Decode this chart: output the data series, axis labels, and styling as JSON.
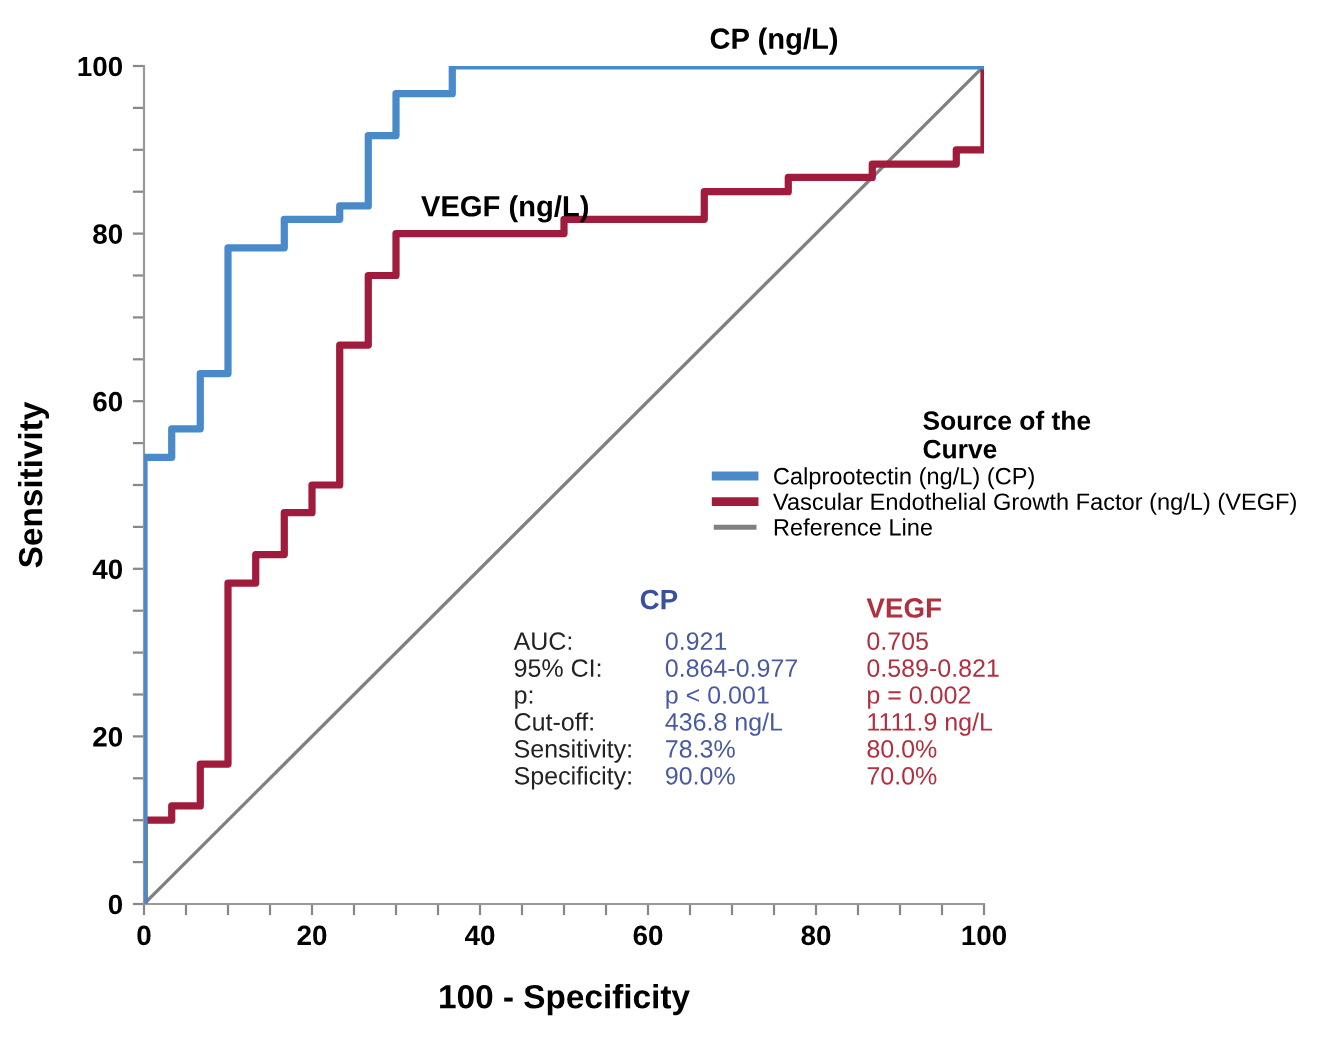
{
  "chart_data": {
    "type": "step",
    "xlabel": "100 - Specificity",
    "ylabel": "Sensitivity",
    "legend_title": "Source of the\nCurve",
    "legend": "right",
    "xlim": [
      0,
      100
    ],
    "ylim": [
      0,
      100
    ],
    "xticks": [
      0,
      {
        "value": 5,
        "label": null
      },
      {
        "value": 10,
        "label": null
      },
      {
        "value": 15,
        "label": null
      },
      20,
      {
        "value": 25,
        "label": null
      },
      {
        "value": 30,
        "label": null
      },
      {
        "value": 35,
        "label": null
      },
      40,
      {
        "value": 45,
        "label": null
      },
      {
        "value": 50,
        "label": null
      },
      {
        "value": 55,
        "label": null
      },
      60,
      {
        "value": 65,
        "label": null
      },
      {
        "value": 70,
        "label": null
      },
      {
        "value": 75,
        "label": null
      },
      80,
      {
        "value": 85,
        "label": null
      },
      {
        "value": 90,
        "label": null
      },
      {
        "value": 95,
        "label": null
      },
      100
    ],
    "yticks": [
      0,
      {
        "value": 5,
        "label": null
      },
      {
        "value": 10,
        "label": null
      },
      {
        "value": 15,
        "label": null
      },
      20,
      {
        "value": 25,
        "label": null
      },
      {
        "value": 30,
        "label": null
      },
      {
        "value": 35,
        "label": null
      },
      40,
      {
        "value": 45,
        "label": null
      },
      {
        "value": 50,
        "label": null
      },
      {
        "value": 55,
        "label": null
      },
      60,
      {
        "value": 65,
        "label": null
      },
      {
        "value": 70,
        "label": null
      },
      {
        "value": 75,
        "label": null
      },
      80,
      {
        "value": 85,
        "label": null
      },
      {
        "value": 90,
        "label": null
      },
      {
        "value": 95,
        "label": null
      },
      100
    ],
    "grid": false,
    "marker": "none",
    "line_style": "solid",
    "series": [
      {
        "name": "Calprootectin (ng/L) (CP)",
        "color": "#4a8ac8",
        "x": [
          0,
          0,
          3.3,
          6.7,
          10,
          16.7,
          23.3,
          26.7,
          30,
          36.7,
          100
        ],
        "values": [
          0,
          53.3,
          56.7,
          63.3,
          78.3,
          81.7,
          83.3,
          91.7,
          96.7,
          100,
          100
        ]
      },
      {
        "name": "Vascular Endothelial Growth Factor (ng/L) (VEGF)",
        "color": "#a01c3c",
        "x": [
          0,
          0,
          3.3,
          6.7,
          10,
          13.3,
          16.7,
          20,
          23.3,
          26.7,
          30,
          50,
          66.7,
          76.7,
          86.7,
          96.7,
          100
        ],
        "values": [
          0,
          10,
          11.7,
          16.7,
          38.3,
          41.7,
          46.7,
          50,
          66.7,
          75,
          80,
          81.7,
          85,
          86.7,
          88.3,
          90,
          100
        ]
      },
      {
        "name": "Reference Line",
        "type": "line",
        "color": "#808080",
        "x": [
          0,
          100
        ],
        "values": [
          0,
          100
        ]
      }
    ],
    "annotations": [
      {
        "text": "CP (ng/L)",
        "x": 75,
        "y": 100
      },
      {
        "text": "VEGF (ng/L)",
        "x": 43,
        "y": 80
      },
      "CP",
      "VEGF",
      "AUC:\n95% CI:\np:\nCut-off:\nSensitivity:\nSpecificity:",
      "0.921\n0.864-0.977\np < 0.001\n436.8 ng/L\n78.3%\n90.0%",
      "0.705\n0.589-0.821\np = 0.002\n1111.9 ng/L\n80.0%\n70.0%"
    ]
  }
}
